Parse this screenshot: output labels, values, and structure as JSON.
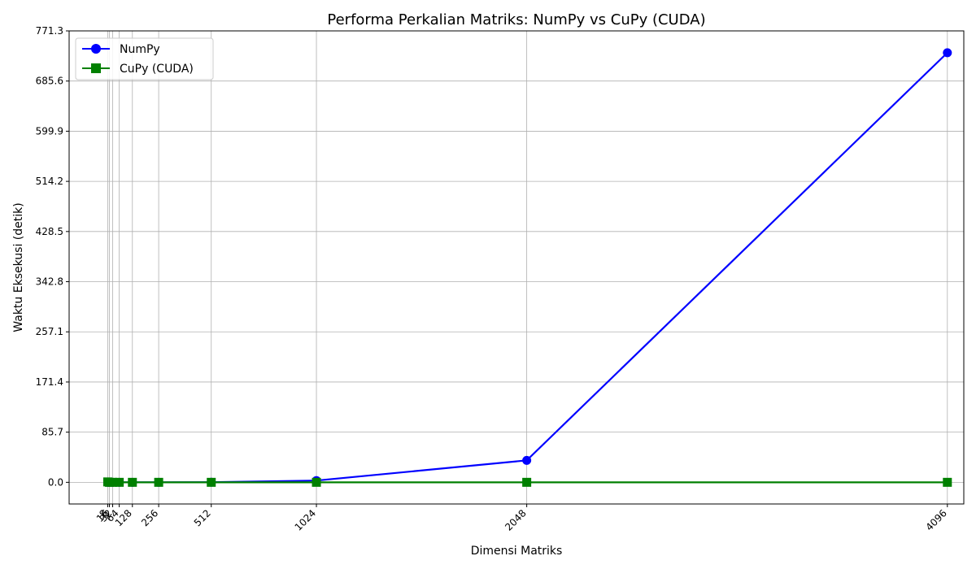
{
  "chart_data": {
    "type": "line",
    "title": "Performa Perkalian Matriks: NumPy vs CuPy (CUDA)",
    "xlabel": "Dimensi Matriks",
    "ylabel": "Waktu Eksekusi (detik)",
    "x": [
      8,
      16,
      32,
      64,
      128,
      256,
      512,
      1024,
      2048,
      4096
    ],
    "x_tick_labels": [
      "8",
      "16",
      "32",
      "64",
      "128",
      "256",
      "512",
      "1024",
      "2048",
      "4096"
    ],
    "y_ticks": [
      0.0,
      85.7,
      171.4,
      257.1,
      342.8,
      428.5,
      514.2,
      599.9,
      685.6,
      771.3
    ],
    "y_tick_labels": [
      "0.0",
      "85.7",
      "171.4",
      "257.1",
      "342.8",
      "428.5",
      "514.2",
      "599.9",
      "685.6",
      "771.3"
    ],
    "xlim": [
      -180,
      4176
    ],
    "ylim": [
      -37,
      771.3
    ],
    "grid": true,
    "legend_position": "top-left",
    "series": [
      {
        "name": "NumPy",
        "color": "#0000ff",
        "marker": "circle",
        "values": [
          0.0,
          0.0,
          0.0,
          0.0,
          0.0,
          0.02,
          0.2,
          3.0,
          37.5,
          734.0
        ]
      },
      {
        "name": "CuPy (CUDA)",
        "color": "#008000",
        "marker": "square",
        "values": [
          0.7,
          0.0,
          0.0,
          0.0,
          0.0,
          0.0,
          0.0,
          0.0,
          0.0,
          0.0
        ]
      }
    ]
  }
}
